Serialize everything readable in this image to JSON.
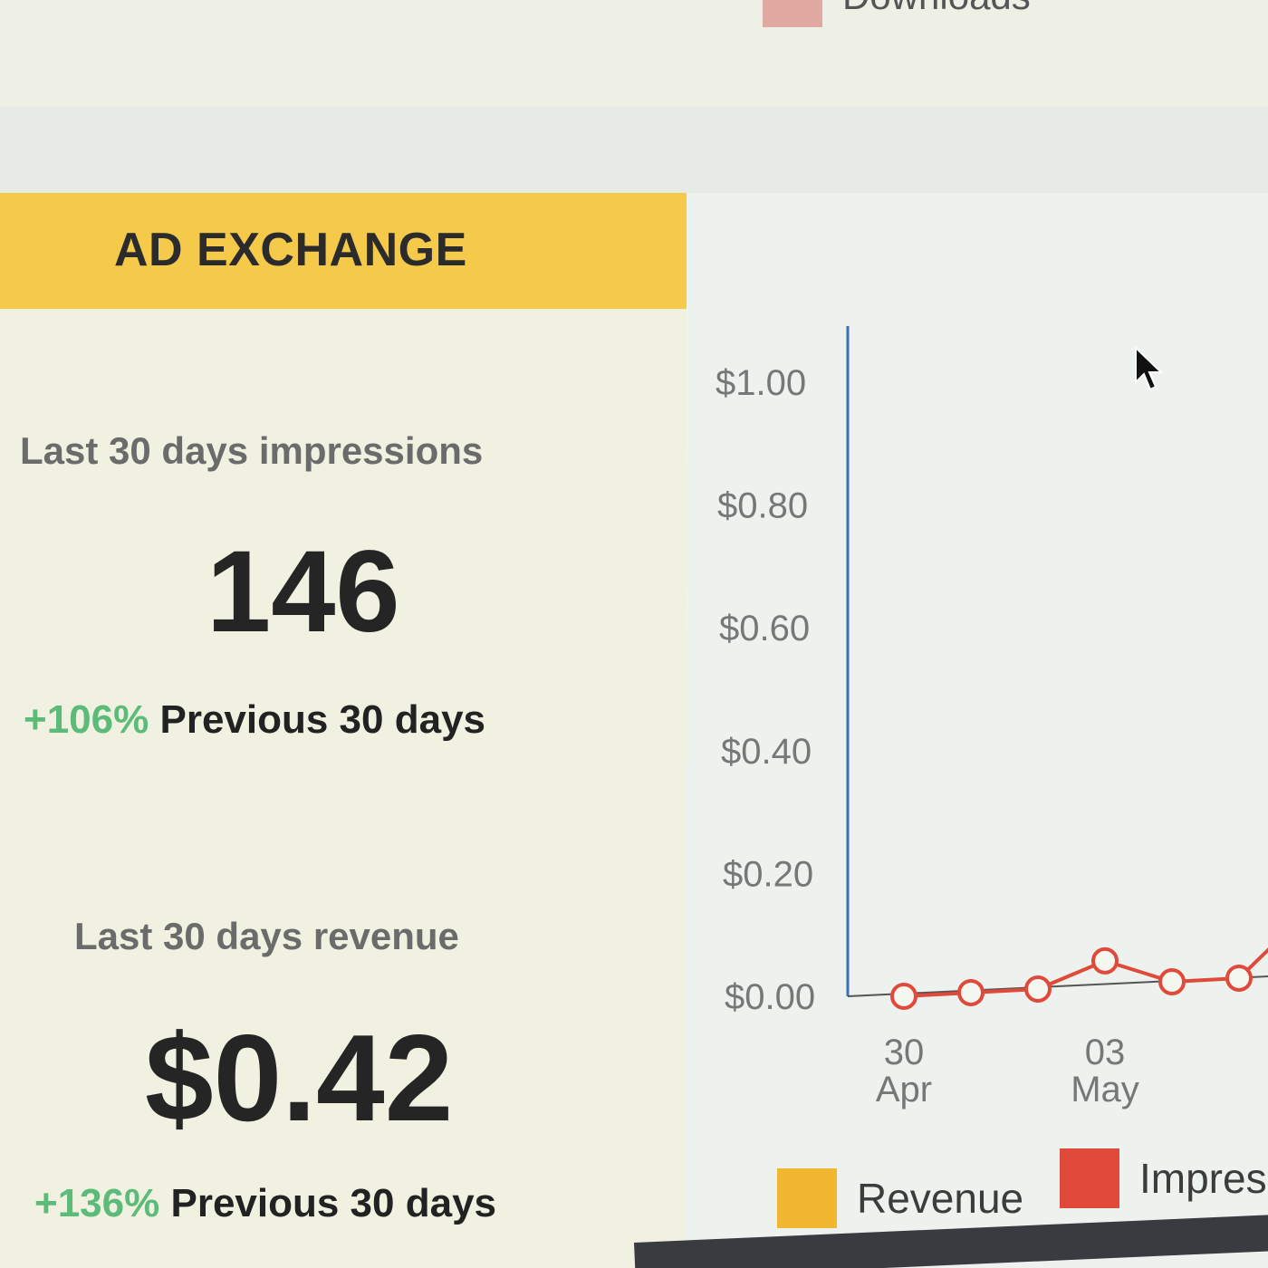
{
  "top_legend": {
    "label": "Downloads",
    "color": "#e2a9a3"
  },
  "ad_exchange": {
    "title": "AD EXCHANGE",
    "impressions": {
      "label": "Last 30 days impressions",
      "value": "146",
      "change_pct": "+106%",
      "change_label": "Previous 30 days"
    },
    "revenue": {
      "label": "Last 30 days revenue",
      "value": "$0.42",
      "change_pct": "+136%",
      "change_label": "Previous 30 days"
    }
  },
  "chart_data": {
    "type": "line",
    "y_ticks": [
      "$1.00",
      "$0.80",
      "$0.60",
      "$0.40",
      "$0.20",
      "$0.00"
    ],
    "ylim": [
      0,
      1.0
    ],
    "x_ticks": [
      {
        "day": "30",
        "month": "Apr"
      },
      {
        "day": "03",
        "month": "May"
      }
    ],
    "series": [
      {
        "name": "Impressions",
        "color": "#e04a3a",
        "points": [
          {
            "x": "2024-04-30",
            "y": 0.0
          },
          {
            "x": "2024-05-01",
            "y": 0.0
          },
          {
            "x": "2024-05-02",
            "y": 0.0
          },
          {
            "x": "2024-05-03",
            "y": 0.04
          },
          {
            "x": "2024-05-04",
            "y": 0.0
          },
          {
            "x": "2024-05-05",
            "y": 0.0
          },
          {
            "x": "2024-05-06",
            "y": 0.1
          }
        ]
      }
    ],
    "legend": [
      {
        "label": "Revenue",
        "color": "#f2b731"
      },
      {
        "label": "Impres",
        "color": "#e04a3a"
      }
    ],
    "legend_position": "bottom"
  }
}
